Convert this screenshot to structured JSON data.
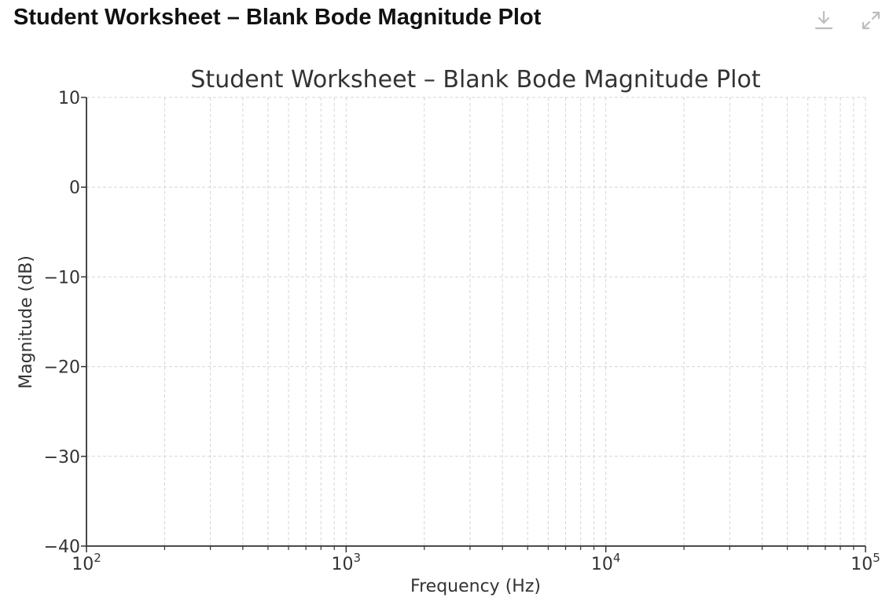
{
  "header": {
    "title": "Student Worksheet – Blank Bode Magnitude Plot",
    "download_icon": "download-icon",
    "expand_icon": "expand-icon"
  },
  "colors": {
    "text": "#111111",
    "axis": "#333333",
    "grid": "#d6d6d6",
    "icon": "#bdbdbd"
  },
  "chart_data": {
    "type": "line",
    "title": "Student Worksheet – Blank Bode Magnitude Plot",
    "xlabel": "Frequency (Hz)",
    "ylabel": "Magnitude (dB)",
    "xscale": "log",
    "xlim": [
      100,
      100000
    ],
    "ylim": [
      -40,
      10
    ],
    "xticks": [
      100,
      1000,
      10000,
      100000
    ],
    "xtick_bases": [
      "10",
      "10",
      "10",
      "10"
    ],
    "xtick_exponents": [
      "2",
      "3",
      "4",
      "5"
    ],
    "yticks": [
      10,
      0,
      -10,
      -20,
      -30,
      -40
    ],
    "ytick_labels": [
      "10",
      "0",
      "−10",
      "−20",
      "−30",
      "−40"
    ],
    "grid": true,
    "grid_which": "both",
    "series": []
  }
}
